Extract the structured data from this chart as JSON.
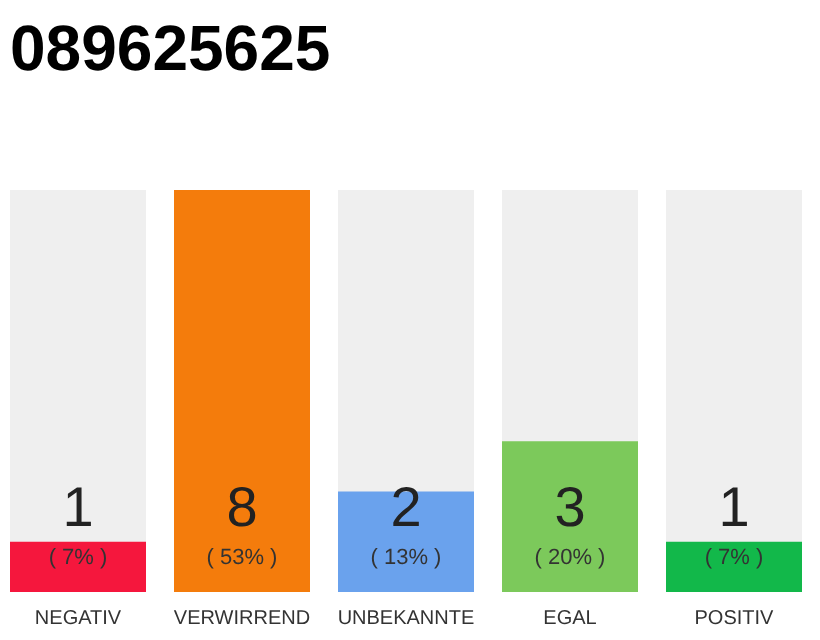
{
  "chart_data": {
    "type": "bar",
    "title": "089625625",
    "categories": [
      "NEGATIV",
      "VERWIRREND",
      "UNBEKANNTE",
      "EGAL",
      "POSITIV"
    ],
    "values": [
      1,
      8,
      2,
      3,
      1
    ],
    "colors": [
      "#f5173d",
      "#f47c0c",
      "#6aa2ed",
      "#7cc95b",
      "#12b84a"
    ],
    "data_labels": true,
    "annotations": [
      "( 7% )",
      "( 53% )",
      "( 13% )",
      "( 20% )",
      "( 7% )"
    ]
  }
}
